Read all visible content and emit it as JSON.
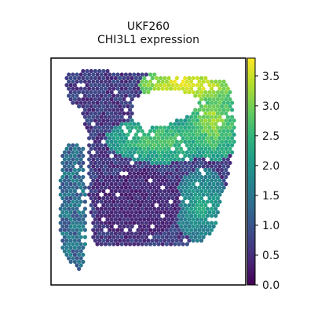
{
  "chart_data": {
    "type": "heatmap",
    "title": "UKF260",
    "subtitle": "CHI3L1 expression",
    "colorbar": {
      "colormap": "viridis",
      "range": [
        0.0,
        3.8
      ],
      "ticks": [
        0.0,
        0.5,
        1.0,
        1.5,
        2.0,
        2.5,
        3.0,
        3.5
      ],
      "tick_labels": [
        "0.0",
        "0.5",
        "1.0",
        "1.5",
        "2.0",
        "2.5",
        "3.0",
        "3.5"
      ]
    },
    "marker": "hexagonal spots",
    "axes_frame": true
  },
  "colors": {
    "viridis": [
      "#440154",
      "#482878",
      "#3e4989",
      "#31688e",
      "#26828e",
      "#1f9e89",
      "#35b779",
      "#6ece58",
      "#b5de2b",
      "#fde725"
    ]
  }
}
